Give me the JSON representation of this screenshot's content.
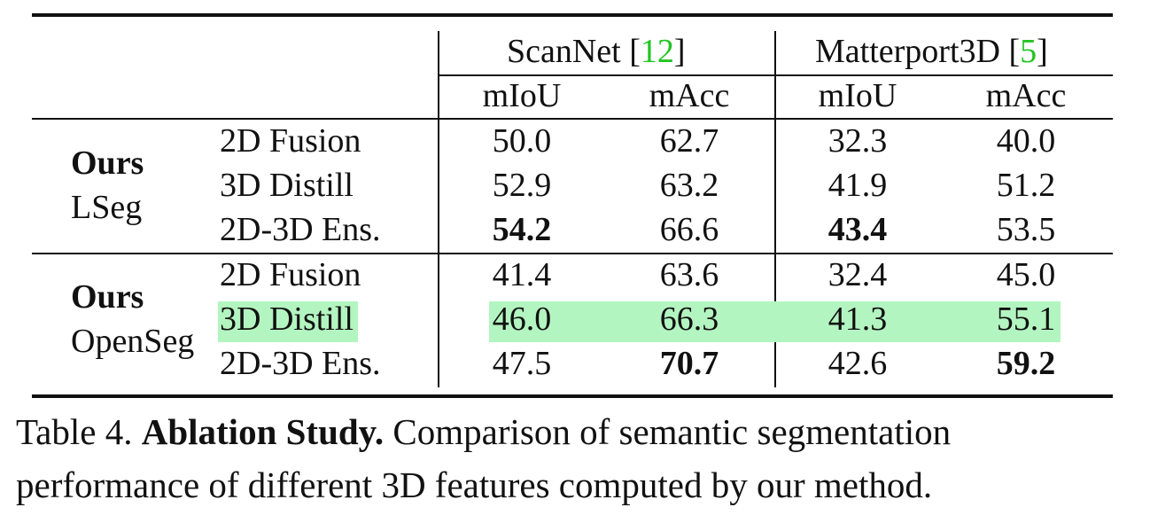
{
  "table": {
    "datasets": [
      {
        "name": "ScanNet",
        "cite": "12"
      },
      {
        "name": "Matterport3D",
        "cite": "5"
      }
    ],
    "metrics": [
      "mIoU",
      "mAcc",
      "mIoU",
      "mAcc"
    ],
    "groups": [
      {
        "title": "Ours",
        "subtitle": "LSeg",
        "rows": [
          {
            "method": "2D Fusion",
            "values": [
              "50.0",
              "62.7",
              "32.3",
              "40.0"
            ],
            "bold": [
              false,
              false,
              false,
              false
            ]
          },
          {
            "method": "3D Distill",
            "values": [
              "52.9",
              "63.2",
              "41.9",
              "51.2"
            ],
            "bold": [
              false,
              false,
              false,
              false
            ]
          },
          {
            "method": "2D-3D Ens.",
            "values": [
              "54.2",
              "66.6",
              "43.4",
              "53.5"
            ],
            "bold": [
              true,
              false,
              true,
              false
            ]
          }
        ]
      },
      {
        "title": "Ours",
        "subtitle": "OpenSeg",
        "rows": [
          {
            "method": "2D Fusion",
            "values": [
              "41.4",
              "63.6",
              "32.4",
              "45.0"
            ],
            "bold": [
              false,
              false,
              false,
              false
            ]
          },
          {
            "method": "3D Distill",
            "values": [
              "46.0",
              "66.3",
              "41.3",
              "55.1"
            ],
            "bold": [
              false,
              false,
              false,
              false
            ],
            "highlight": true
          },
          {
            "method": "2D-3D Ens.",
            "values": [
              "47.5",
              "70.7",
              "42.6",
              "59.2"
            ],
            "bold": [
              false,
              true,
              false,
              true
            ]
          }
        ]
      }
    ],
    "highlight_color": "#b3f5c0",
    "cite_color": "#22c422"
  },
  "caption": {
    "label": "Table 4.",
    "title": "Ablation Study.",
    "line1_rest": "Comparison of semantic segmentation",
    "line2": "performance of different 3D features computed by our method."
  }
}
